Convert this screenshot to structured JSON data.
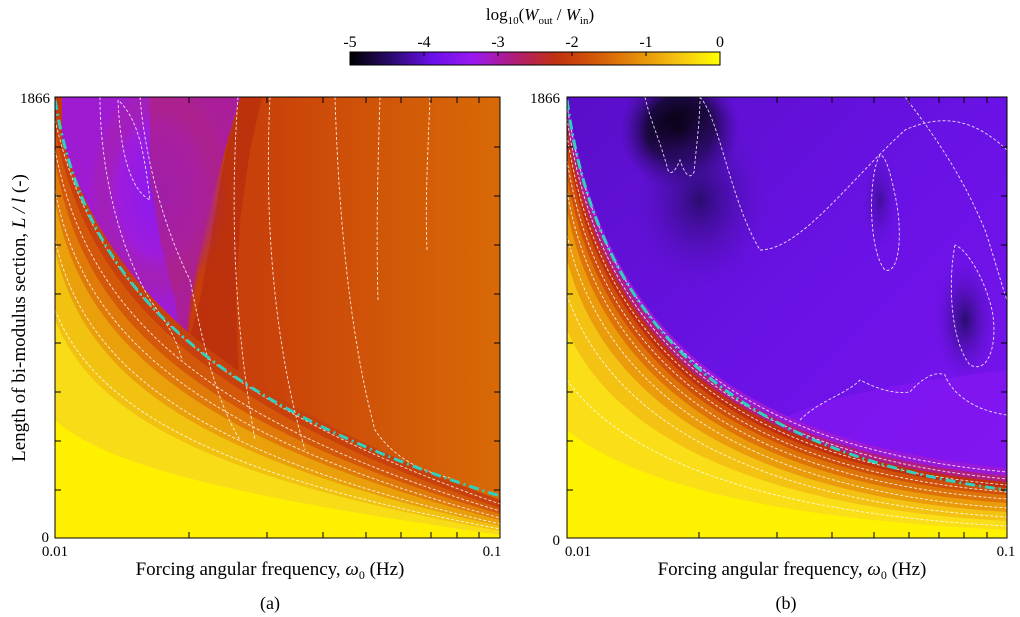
{
  "colorbar": {
    "title_prefix": "log",
    "title_sub": "10",
    "title_open": "(",
    "w_out_main": "W",
    "w_out_sub": "out",
    "slash": " / ",
    "w_in_main": "W",
    "w_in_sub": "in",
    "title_close": ")",
    "ticks": [
      "-5",
      "-4",
      "-3",
      "-2",
      "-1",
      "0"
    ],
    "range": [
      -5,
      0
    ],
    "colors": [
      "#000000",
      "#2a0a6e",
      "#6a10ea",
      "#9a18f0",
      "#b01c78",
      "#c0300e",
      "#d45a08",
      "#e68e08",
      "#f6c410",
      "#ffff00"
    ]
  },
  "chart_data": [
    {
      "type": "heatmap",
      "panel_label": "(a)",
      "xlabel": "Forcing angular frequency, ω0 (Hz)",
      "xlabel_main": "Forcing angular frequency, ",
      "xlabel_sym": "ω",
      "xlabel_sub": "0",
      "xlabel_unit": " (Hz)",
      "ylabel": "Length of bi-modulus section, L / l (-)",
      "ylabel_main": "Length of bi-modulus section, ",
      "ylabel_italic": "L / l",
      "ylabel_unit": " (-)",
      "x_scale": "log",
      "xlim": [
        0.01,
        0.1
      ],
      "ylim": [
        0,
        1866
      ],
      "x_ticks": [
        "0.01",
        "0.1"
      ],
      "y_ticks": [
        "0",
        "1866"
      ],
      "plateau_log10_ratio": -1.8,
      "valley_log10_ratio": -3.2,
      "contours": "white dashed",
      "boundary_curve": "turquoise dash-dot"
    },
    {
      "type": "heatmap",
      "panel_label": "(b)",
      "xlabel": "Forcing angular frequency, ω0 (Hz)",
      "xlabel_main": "Forcing angular frequency, ",
      "xlabel_sym": "ω",
      "xlabel_sub": "0",
      "xlabel_unit": " (Hz)",
      "x_scale": "log",
      "xlim": [
        0.01,
        0.1
      ],
      "ylim": [
        0,
        1866
      ],
      "x_ticks": [
        "0.01",
        "0.1"
      ],
      "y_ticks": [
        "0",
        "1866"
      ],
      "plateau_log10_ratio": -3.8,
      "valley_log10_ratio": -4.9,
      "contours": "white dashed",
      "boundary_curve": "turquoise dash-dot"
    }
  ]
}
